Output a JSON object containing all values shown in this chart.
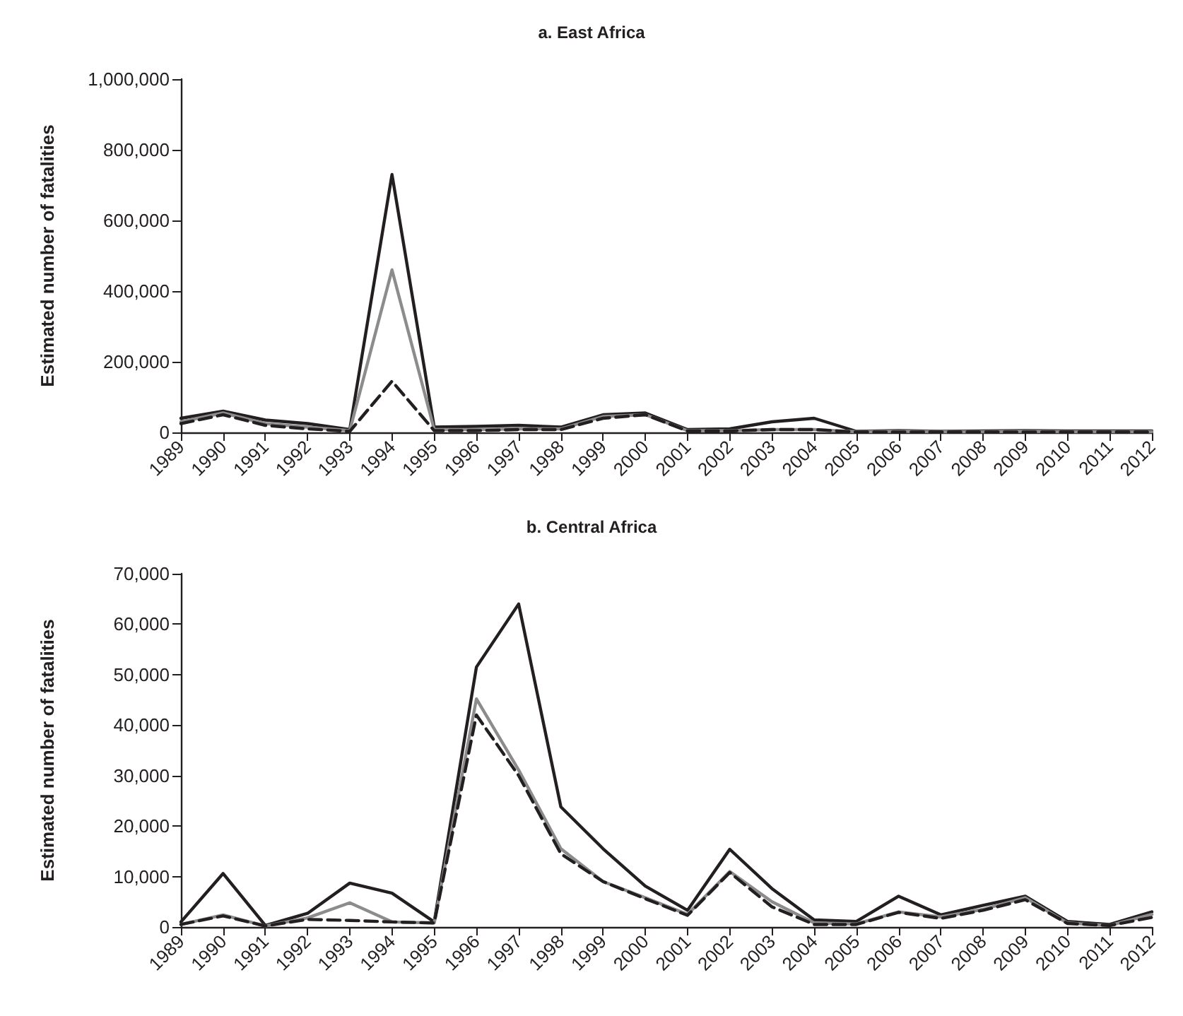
{
  "chart_data": [
    {
      "type": "line",
      "title": "a. East Africa",
      "ylabel": "Estimated number of fatalities",
      "categories": [
        "1989",
        "1990",
        "1991",
        "1992",
        "1993",
        "1994",
        "1995",
        "1996",
        "1997",
        "1998",
        "1999",
        "2000",
        "2001",
        "2002",
        "2003",
        "2004",
        "2005",
        "2006",
        "2007",
        "2008",
        "2009",
        "2010",
        "2011",
        "2012"
      ],
      "series": [
        {
          "color": "#231f20",
          "line_style": "solid",
          "values": [
            40000,
            60000,
            35000,
            25000,
            8000,
            730000,
            15000,
            17000,
            20000,
            15000,
            50000,
            55000,
            8000,
            10000,
            30000,
            40000,
            3000,
            5000,
            3000,
            4000,
            5000,
            4000,
            4000,
            4000
          ]
        },
        {
          "color": "#8c8c8c",
          "line_style": "solid",
          "values": [
            30000,
            55000,
            25000,
            15000,
            5000,
            460000,
            8000,
            8000,
            10000,
            10000,
            45000,
            50000,
            5000,
            5000,
            8000,
            8000,
            2000,
            3000,
            2000,
            2000,
            3000,
            2000,
            2000,
            2000
          ]
        },
        {
          "color": "#231f20",
          "line_style": "dashed",
          "values": [
            25000,
            50000,
            20000,
            10000,
            3000,
            145000,
            5000,
            5000,
            8000,
            8000,
            40000,
            50000,
            4000,
            4000,
            8000,
            8000,
            1000,
            1000,
            1000,
            1000,
            1000,
            1000,
            1000,
            1000
          ]
        }
      ],
      "ylim": [
        0,
        1000000
      ],
      "yticks": [
        {
          "value": 0,
          "label": "0"
        },
        {
          "value": 200000,
          "label": "200,000"
        },
        {
          "value": 400000,
          "label": "400,000"
        },
        {
          "value": 600000,
          "label": "600,000"
        },
        {
          "value": 800000,
          "label": "800,000"
        },
        {
          "value": 1000000,
          "label": "1,000,000"
        }
      ],
      "grid": false,
      "marker": "none"
    },
    {
      "type": "line",
      "title": "b. Central Africa",
      "ylabel": "Estimated number of fatalities",
      "categories": [
        "1989",
        "1990",
        "1991",
        "1992",
        "1993",
        "1994",
        "1995",
        "1996",
        "1997",
        "1998",
        "1999",
        "2000",
        "2001",
        "2002",
        "2003",
        "2004",
        "2005",
        "2006",
        "2007",
        "2008",
        "2009",
        "2010",
        "2011",
        "2012"
      ],
      "series": [
        {
          "color": "#231f20",
          "line_style": "solid",
          "values": [
            1000,
            10600,
            300,
            2700,
            8700,
            6700,
            1000,
            51500,
            64000,
            23800,
            15500,
            8100,
            3300,
            15400,
            7600,
            1400,
            1100,
            6100,
            2400,
            4300,
            6100,
            1100,
            500,
            3000
          ]
        },
        {
          "color": "#8c8c8c",
          "line_style": "solid",
          "values": [
            500,
            2400,
            200,
            1800,
            4800,
            1000,
            800,
            45200,
            31100,
            15500,
            9000,
            5800,
            2500,
            11000,
            5000,
            800,
            600,
            3000,
            2000,
            3500,
            5800,
            800,
            300,
            2500
          ]
        },
        {
          "color": "#231f20",
          "line_style": "dashed",
          "values": [
            500,
            2200,
            200,
            1500,
            1300,
            1000,
            800,
            42000,
            30000,
            14500,
            9000,
            5600,
            2300,
            10800,
            4000,
            500,
            500,
            2900,
            1700,
            3300,
            5400,
            700,
            300,
            1900
          ]
        }
      ],
      "ylim": [
        0,
        70000
      ],
      "yticks": [
        {
          "value": 0,
          "label": "0"
        },
        {
          "value": 10000,
          "label": "10,000"
        },
        {
          "value": 20000,
          "label": "20,000"
        },
        {
          "value": 30000,
          "label": "30,000"
        },
        {
          "value": 40000,
          "label": "40,000"
        },
        {
          "value": 50000,
          "label": "50,000"
        },
        {
          "value": 60000,
          "label": "60,000"
        },
        {
          "value": 70000,
          "label": "70,000"
        }
      ],
      "grid": false,
      "marker": "none"
    }
  ]
}
